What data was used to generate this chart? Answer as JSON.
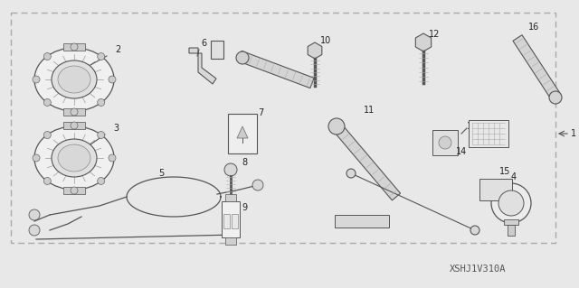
{
  "bg_color": "#e8e8e8",
  "diagram_bg": "#ffffff",
  "border_color": "#999999",
  "code": "XSHJ1V310A",
  "lc": "#555555",
  "pf": "#e4e4e4",
  "pe": "#555555"
}
